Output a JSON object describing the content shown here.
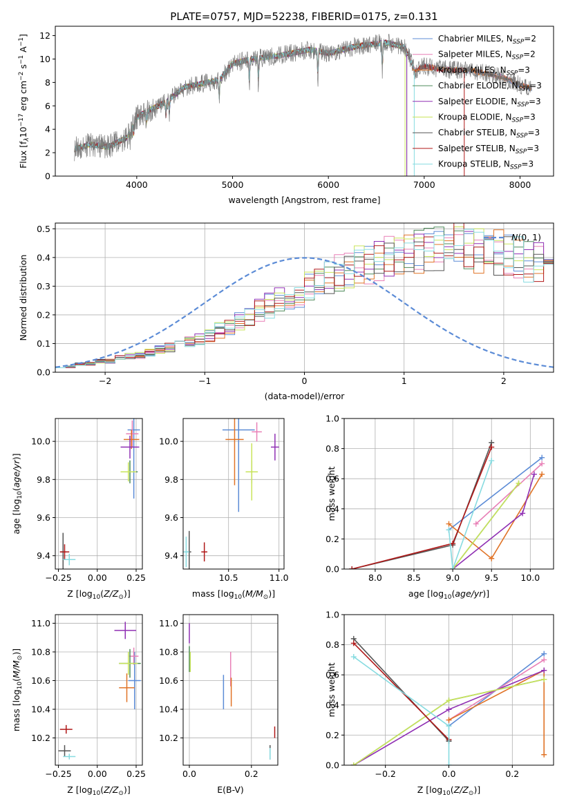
{
  "figure_title": "PLATE=0757, MJD=52238, FIBERID=0175, z=0.131",
  "colors": {
    "Chabrier MILES": "#5b8bd6",
    "Salpeter MILES": "#e87fb6",
    "Kroupa MILES": "#e07326",
    "Chabrier ELODIE": "#4e8a5a",
    "Salpeter ELODIE": "#8f2fb3",
    "Kroupa ELODIE": "#c8e45a",
    "Chabrier STELIB": "#555555",
    "Salpeter STELIB": "#b01818",
    "Kroupa STELIB": "#86dbe0",
    "gauss": "#5b8bd6"
  },
  "chart_data": [
    {
      "id": "spectrum",
      "type": "line",
      "xlabel": "wavelength [Angstrom, rest frame]",
      "ylabel": "Flux [f_λ10^-17 erg cm^-2 s^-1 A^-1]",
      "xlim": [
        3150,
        8350
      ],
      "ylim": [
        0,
        12.8
      ],
      "xticks": [
        4000,
        5000,
        6000,
        7000,
        8000
      ],
      "yticks": [
        0,
        2,
        4,
        6,
        8,
        10,
        12
      ],
      "grid": false,
      "legend_position": "right",
      "spectrum_x_range": [
        3350,
        8120
      ],
      "continuum_anchors": {
        "x": [
          3350,
          3500,
          3700,
          3900,
          4000,
          4100,
          4300,
          4500,
          4860,
          5000,
          5200,
          5500,
          5800,
          6000,
          6300,
          6600,
          6800,
          6900,
          7000,
          7200,
          7500,
          7800,
          8000,
          8100
        ],
        "y": [
          2.3,
          2.7,
          2.5,
          3.3,
          5.0,
          5.5,
          6.3,
          7.6,
          8.2,
          9.6,
          10.0,
          10.3,
          10.8,
          10.5,
          11.1,
          11.4,
          11.0,
          9.0,
          9.4,
          9.1,
          9.0,
          8.5,
          7.8,
          7.5
        ]
      },
      "absorption_lines": [
        3934,
        3969,
        4102,
        4304,
        4340,
        4861,
        5175,
        5270,
        5890,
        6563
      ],
      "series": [
        {
          "name": "Chabrier MILES",
          "label_base": "Chabrier MILES, N",
          "label_sub": "SSP",
          "label_tail": "=2",
          "model_cutoff": 8120
        },
        {
          "name": "Salpeter MILES",
          "label_base": "Salpeter MILES, N",
          "label_sub": "SSP",
          "label_tail": "=2",
          "model_cutoff": 8120
        },
        {
          "name": "Kroupa MILES",
          "label_base": "Kroupa MILES, N",
          "label_sub": "SSP",
          "label_tail": "=3",
          "model_cutoff": 8120
        },
        {
          "name": "Chabrier ELODIE",
          "label_base": "Chabrier ELODIE, N",
          "label_sub": "SSP",
          "label_tail": "=3",
          "model_cutoff": 6820
        },
        {
          "name": "Salpeter ELODIE",
          "label_base": "Salpeter ELODIE, N",
          "label_sub": "SSP",
          "label_tail": "=3",
          "model_cutoff": 6820
        },
        {
          "name": "Kroupa ELODIE",
          "label_base": "Kroupa ELODIE, N",
          "label_sub": "SSP",
          "label_tail": "=3",
          "model_cutoff": 6800
        },
        {
          "name": "Chabrier STELIB",
          "label_base": "Chabrier STELIB, N",
          "label_sub": "SSP",
          "label_tail": "=3",
          "model_cutoff": 8120
        },
        {
          "name": "Salpeter STELIB",
          "label_base": "Salpeter STELIB, N",
          "label_sub": "SSP",
          "label_tail": "=3",
          "model_cutoff": 7420
        },
        {
          "name": "Kroupa STELIB",
          "label_base": "Kroupa STELIB, N",
          "label_sub": "SSP",
          "label_tail": "=3",
          "model_cutoff": 6900
        }
      ]
    },
    {
      "id": "residuals",
      "type": "step",
      "xlabel": "(data-model)/error",
      "ylabel": "Normed distribution",
      "xlim": [
        -2.5,
        2.5
      ],
      "ylim": [
        0,
        0.52
      ],
      "xticks": [
        -2,
        -1,
        0,
        1,
        2
      ],
      "yticks": [
        0.0,
        0.1,
        0.2,
        0.3,
        0.4,
        0.5
      ],
      "grid": true,
      "bin_width": 0.1,
      "legend": "N(0,1)",
      "legend_position": "top-right",
      "envelope": [
        0.02,
        0.02,
        0.03,
        0.03,
        0.04,
        0.04,
        0.05,
        0.06,
        0.06,
        0.07,
        0.08,
        0.09,
        0.1,
        0.11,
        0.12,
        0.13,
        0.15,
        0.16,
        0.18,
        0.2,
        0.22,
        0.24,
        0.26,
        0.27,
        0.29,
        0.31,
        0.32,
        0.34,
        0.36,
        0.37,
        0.38,
        0.39,
        0.4,
        0.41,
        0.42,
        0.43,
        0.43,
        0.44,
        0.44,
        0.45,
        0.45,
        0.45,
        0.44,
        0.44,
        0.43,
        0.42,
        0.41,
        0.4,
        0.39,
        0.38,
        0.37,
        0.36,
        0.35,
        0.33,
        0.32,
        0.3,
        0.29,
        0.27,
        0.26,
        0.24,
        0.23,
        0.21,
        0.2,
        0.18,
        0.17,
        0.15,
        0.14,
        0.13,
        0.12,
        0.11,
        0.1,
        0.09,
        0.08,
        0.07,
        0.07,
        0.06,
        0.06,
        0.05,
        0.05,
        0.04,
        0.04,
        0.04,
        0.03,
        0.03,
        0.03,
        0.03,
        0.03,
        0.02,
        0.02,
        0.02,
        0.02,
        0.02,
        0.02,
        0.02,
        0.02,
        0.02,
        0.02,
        0.02,
        0.02,
        0.02
      ]
    },
    {
      "id": "age-vs-Z",
      "type": "errorbar",
      "xlabel": "Z [log10(Z/Z⊙)]",
      "ylabel": "age [log10(age/yr)]",
      "xlim": [
        -0.27,
        0.29
      ],
      "ylim": [
        9.33,
        10.12
      ],
      "xticks": [
        -0.25,
        0.0,
        0.25
      ],
      "yticks": [
        9.4,
        9.6,
        9.8,
        10.0
      ],
      "grid": true,
      "points": [
        {
          "series": "Chabrier MILES",
          "x": 0.235,
          "y": 10.06,
          "xerr": 0.04,
          "yerr": 0.36
        },
        {
          "series": "Salpeter MILES",
          "x": 0.225,
          "y": 10.04,
          "xerr": 0.04,
          "yerr": 0.07
        },
        {
          "series": "Kroupa MILES",
          "x": 0.22,
          "y": 10.01,
          "xerr": 0.05,
          "yerr": 0.05
        },
        {
          "series": "Chabrier ELODIE",
          "x": 0.21,
          "y": 9.84,
          "xerr": 0.05,
          "yerr": 0.06
        },
        {
          "series": "Salpeter ELODIE",
          "x": 0.21,
          "y": 9.97,
          "xerr": 0.06,
          "yerr": 0.06
        },
        {
          "series": "Kroupa ELODIE",
          "x": 0.2,
          "y": 9.84,
          "xerr": 0.05,
          "yerr": 0.05
        },
        {
          "series": "Chabrier STELIB",
          "x": -0.22,
          "y": 9.42,
          "xerr": 0.02,
          "yerr": 0.1
        },
        {
          "series": "Salpeter STELIB",
          "x": -0.21,
          "y": 9.42,
          "xerr": 0.03,
          "yerr": 0.04
        },
        {
          "series": "Kroupa STELIB",
          "x": -0.18,
          "y": 9.38,
          "xerr": 0.04,
          "yerr": 0.03
        }
      ]
    },
    {
      "id": "age-vs-mass",
      "type": "errorbar",
      "xlabel": "mass [log10(M/M⊙)]",
      "ylabel": "",
      "xlim": [
        10.05,
        11.05
      ],
      "ylim": [
        9.33,
        10.12
      ],
      "xticks": [
        10.5,
        11.0
      ],
      "yticks": [
        9.4,
        9.6,
        9.8,
        10.0
      ],
      "grid": true,
      "points": [
        {
          "series": "Chabrier MILES",
          "x": 10.6,
          "y": 10.06,
          "xerr": 0.16,
          "yerr": 0.43
        },
        {
          "series": "Salpeter MILES",
          "x": 10.78,
          "y": 10.05,
          "xerr": 0.05,
          "yerr": 0.05
        },
        {
          "series": "Kroupa MILES",
          "x": 10.56,
          "y": 10.01,
          "xerr": 0.09,
          "yerr": 0.24
        },
        {
          "series": "Chabrier ELODIE",
          "x": 10.73,
          "y": 9.84,
          "xerr": 0.06,
          "yerr": 0.06
        },
        {
          "series": "Salpeter ELODIE",
          "x": 10.96,
          "y": 9.97,
          "xerr": 0.04,
          "yerr": 0.07
        },
        {
          "series": "Kroupa ELODIE",
          "x": 10.73,
          "y": 9.84,
          "xerr": 0.06,
          "yerr": 0.15
        },
        {
          "series": "Chabrier STELIB",
          "x": 10.11,
          "y": 9.42,
          "xerr": 0.02,
          "yerr": 0.11
        },
        {
          "series": "Salpeter STELIB",
          "x": 10.26,
          "y": 9.42,
          "xerr": 0.03,
          "yerr": 0.05
        },
        {
          "series": "Kroupa STELIB",
          "x": 10.08,
          "y": 9.42,
          "xerr": 0.03,
          "yerr": 0.08
        }
      ]
    },
    {
      "id": "weight-vs-age",
      "type": "line",
      "xlabel": "age [log10(age/yr)]",
      "ylabel": "mass weight",
      "xlim": [
        7.6,
        10.3
      ],
      "ylim": [
        0,
        1.0
      ],
      "xticks": [
        8.0,
        8.5,
        9.0,
        9.5,
        10.0
      ],
      "yticks": [
        0.0,
        0.2,
        0.4,
        0.6,
        0.8,
        1.0
      ],
      "grid": true,
      "series": [
        {
          "name": "Chabrier MILES",
          "x": [
            8.95,
            10.15
          ],
          "y": [
            0.26,
            0.74
          ]
        },
        {
          "name": "Salpeter MILES",
          "x": [
            9.3,
            10.15
          ],
          "y": [
            0.3,
            0.7
          ]
        },
        {
          "name": "Kroupa MILES",
          "x": [
            8.95,
            9.5,
            10.15
          ],
          "y": [
            0.3,
            0.07,
            0.63
          ]
        },
        {
          "name": "Chabrier ELODIE",
          "x": [
            9.0,
            9.85
          ],
          "y": [
            0.0,
            0.57
          ]
        },
        {
          "name": "Salpeter ELODIE",
          "x": [
            9.0,
            9.9,
            10.05
          ],
          "y": [
            0.0,
            0.37,
            0.63
          ]
        },
        {
          "name": "Kroupa ELODIE",
          "x": [
            9.0,
            9.85
          ],
          "y": [
            0.0,
            0.57
          ]
        },
        {
          "name": "Chabrier STELIB",
          "x": [
            7.7,
            9.0,
            9.5
          ],
          "y": [
            0.0,
            0.16,
            0.84
          ]
        },
        {
          "name": "Salpeter STELIB",
          "x": [
            7.7,
            9.0,
            9.5
          ],
          "y": [
            0.0,
            0.17,
            0.81
          ]
        },
        {
          "name": "Kroupa STELIB",
          "x": [
            8.95,
            9.0,
            9.5
          ],
          "y": [
            0.26,
            0.0,
            0.72
          ]
        }
      ]
    },
    {
      "id": "mass-vs-Z",
      "type": "errorbar",
      "xlabel": "Z [log10(Z/Z⊙)]",
      "ylabel": "mass [log10(M/M⊙)]",
      "xlim": [
        -0.27,
        0.29
      ],
      "ylim": [
        10.01,
        11.06
      ],
      "xticks": [
        -0.25,
        0.0,
        0.25
      ],
      "yticks": [
        10.2,
        10.4,
        10.6,
        10.8,
        11.0
      ],
      "grid": true,
      "points": [
        {
          "series": "Chabrier MILES",
          "x": 0.24,
          "y": 10.6,
          "xerr": 0.04,
          "yerr": 0.2
        },
        {
          "series": "Salpeter MILES",
          "x": 0.235,
          "y": 10.77,
          "xerr": 0.03,
          "yerr": 0.06
        },
        {
          "series": "Kroupa MILES",
          "x": 0.19,
          "y": 10.55,
          "xerr": 0.05,
          "yerr": 0.1
        },
        {
          "series": "Chabrier ELODIE",
          "x": 0.21,
          "y": 10.72,
          "xerr": 0.07,
          "yerr": 0.1
        },
        {
          "series": "Salpeter ELODIE",
          "x": 0.18,
          "y": 10.95,
          "xerr": 0.07,
          "yerr": 0.06
        },
        {
          "series": "Kroupa ELODIE",
          "x": 0.2,
          "y": 10.72,
          "xerr": 0.06,
          "yerr": 0.08
        },
        {
          "series": "Chabrier STELIB",
          "x": -0.21,
          "y": 10.11,
          "xerr": 0.04,
          "yerr": 0.04
        },
        {
          "series": "Salpeter STELIB",
          "x": -0.2,
          "y": 10.26,
          "xerr": 0.04,
          "yerr": 0.03
        },
        {
          "series": "Kroupa STELIB",
          "x": -0.18,
          "y": 10.07,
          "xerr": 0.04,
          "yerr": 0.02
        }
      ]
    },
    {
      "id": "mass-vs-ebv",
      "type": "errorbar",
      "xlabel": "E(B-V)",
      "ylabel": "",
      "xlim": [
        -0.02,
        0.285
      ],
      "ylim": [
        10.01,
        11.06
      ],
      "xticks": [
        0.0,
        0.2
      ],
      "yticks": [
        10.2,
        10.4,
        10.6,
        10.8,
        11.0
      ],
      "grid": true,
      "points": [
        {
          "series": "Chabrier MILES",
          "x": 0.11,
          "y": 10.52,
          "xerr": 0.0,
          "yerr": 0.12
        },
        {
          "series": "Salpeter MILES",
          "x": 0.133,
          "y": 10.68,
          "xerr": 0.0,
          "yerr": 0.12
        },
        {
          "series": "Kroupa MILES",
          "x": 0.135,
          "y": 10.52,
          "xerr": 0.0,
          "yerr": 0.1
        },
        {
          "series": "Chabrier ELODIE",
          "x": 0.0,
          "y": 10.75,
          "xerr": 0.0,
          "yerr": 0.09
        },
        {
          "series": "Salpeter ELODIE",
          "x": 0.0,
          "y": 10.93,
          "xerr": 0.0,
          "yerr": 0.07
        },
        {
          "series": "Kroupa ELODIE",
          "x": 0.003,
          "y": 10.73,
          "xerr": 0.0,
          "yerr": 0.07
        },
        {
          "series": "Chabrier STELIB",
          "x": 0.26,
          "y": 10.1,
          "xerr": 0.0,
          "yerr": 0.05
        },
        {
          "series": "Salpeter STELIB",
          "x": 0.275,
          "y": 10.24,
          "xerr": 0.0,
          "yerr": 0.04
        },
        {
          "series": "Kroupa STELIB",
          "x": 0.26,
          "y": 10.09,
          "xerr": 0.0,
          "yerr": 0.04
        }
      ]
    },
    {
      "id": "weight-vs-Z",
      "type": "line",
      "xlabel": "Z [log10(Z/Z⊙)]",
      "ylabel": "mass weight",
      "xlim": [
        -0.33,
        0.33
      ],
      "ylim": [
        0,
        1.0
      ],
      "xticks": [
        -0.2,
        0.0,
        0.2
      ],
      "yticks": [
        0.0,
        0.2,
        0.4,
        0.6,
        0.8,
        1.0
      ],
      "grid": true,
      "series": [
        {
          "name": "Chabrier MILES",
          "x": [
            0.0,
            0.3
          ],
          "y": [
            0.26,
            0.74
          ]
        },
        {
          "name": "Salpeter MILES",
          "x": [
            0.0,
            0.3
          ],
          "y": [
            0.3,
            0.7
          ]
        },
        {
          "name": "Kroupa MILES",
          "x": [
            0.0,
            0.3,
            0.3
          ],
          "y": [
            0.3,
            0.63,
            0.07
          ]
        },
        {
          "name": "Chabrier ELODIE",
          "x": [
            -0.3,
            0.0,
            0.3
          ],
          "y": [
            0.0,
            0.43,
            0.57
          ]
        },
        {
          "name": "Salpeter ELODIE",
          "x": [
            -0.3,
            0.0,
            0.3
          ],
          "y": [
            0.0,
            0.37,
            0.63
          ]
        },
        {
          "name": "Kroupa ELODIE",
          "x": [
            -0.3,
            0.0,
            0.3
          ],
          "y": [
            0.0,
            0.43,
            0.57
          ]
        },
        {
          "name": "Chabrier STELIB",
          "x": [
            -0.3,
            0.0,
            0.0
          ],
          "y": [
            0.84,
            0.16,
            0.16
          ]
        },
        {
          "name": "Salpeter STELIB",
          "x": [
            -0.3,
            0.0
          ],
          "y": [
            0.81,
            0.17
          ]
        },
        {
          "name": "Kroupa STELIB",
          "x": [
            -0.3,
            0.0,
            0.0
          ],
          "y": [
            0.72,
            0.26,
            0.0
          ]
        }
      ]
    }
  ]
}
